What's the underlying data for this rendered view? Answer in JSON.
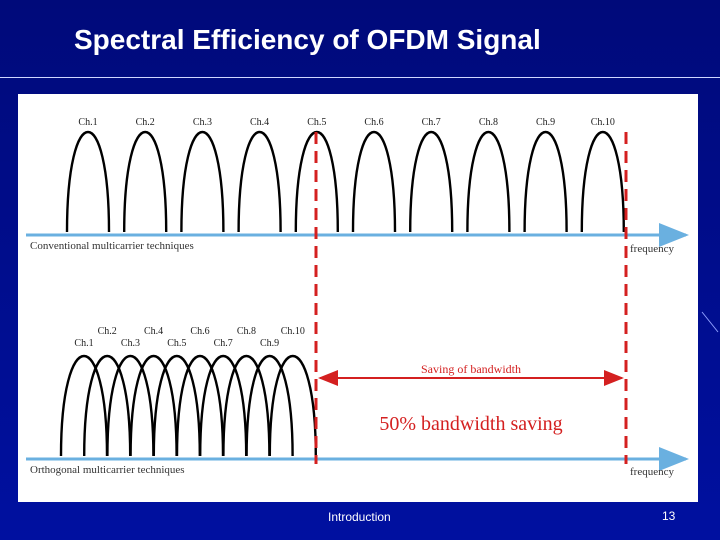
{
  "slide": {
    "title": "Spectral Efficiency of OFDM Signal",
    "footer": "Introduction",
    "page_number": "13"
  },
  "diagram": {
    "conventional": {
      "channels": [
        "Ch.1",
        "Ch.2",
        "Ch.3",
        "Ch.4",
        "Ch.5",
        "Ch.6",
        "Ch.7",
        "Ch.8",
        "Ch.9",
        "Ch.10"
      ],
      "axis_label": "Conventional multicarrier techniques",
      "frequency_label": "frequency"
    },
    "orthogonal": {
      "channels_top": [
        "Ch.2",
        "Ch.4",
        "Ch.6",
        "Ch.8",
        "Ch.10"
      ],
      "channels_bottom": [
        "Ch.1",
        "Ch.3",
        "Ch.5",
        "Ch.7",
        "Ch.9"
      ],
      "axis_label": "Orthogonal multicarrier techniques",
      "frequency_label": "frequency"
    },
    "saving_label": "Saving of bandwidth",
    "saving_percent_label": "50% bandwidth saving",
    "colors": {
      "axis": "#6ab0e0",
      "marker": "#d42020",
      "curve": "#000000"
    }
  }
}
